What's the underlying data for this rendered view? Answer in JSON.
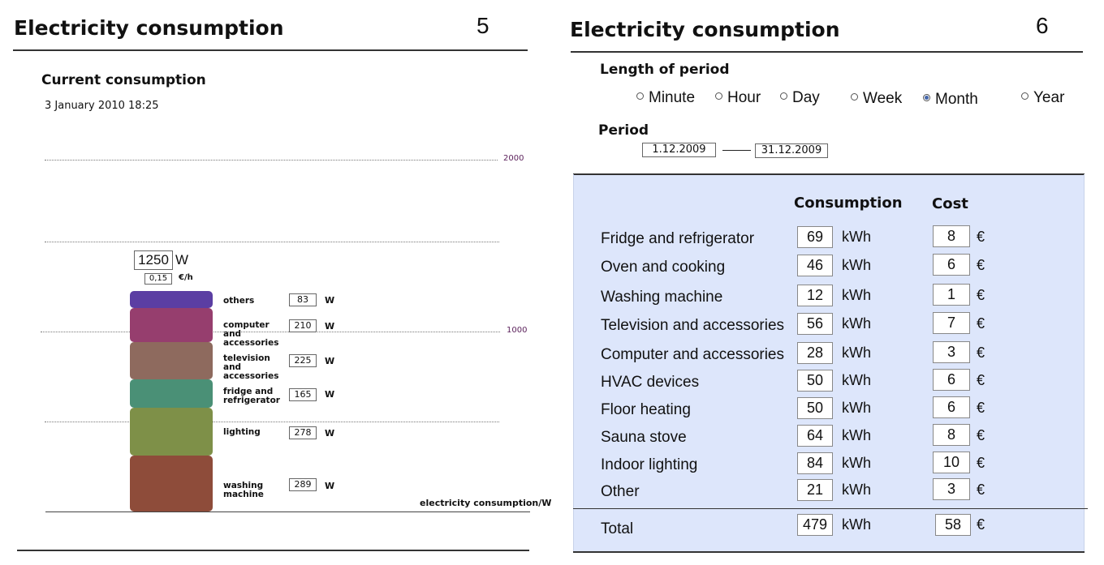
{
  "slide5": {
    "title": "Electricity consumption",
    "number": "5",
    "heading": "Current consumption",
    "timestamp": "3 January 2010 18:25",
    "axis_label_2000": "2000",
    "axis_label_1000": "1000",
    "power_value": "1250",
    "power_unit": "W",
    "cost_value": "0,15",
    "cost_unit": "€/h",
    "x_label": "electricity consumption/W",
    "segments": [
      {
        "label": "others",
        "value": "83",
        "unit": "W",
        "color": "#5b3ea3"
      },
      {
        "label": "computer and accessories",
        "value": "210",
        "unit": "W",
        "color": "#963e6e"
      },
      {
        "label": "television and accessories",
        "value": "225",
        "unit": "W",
        "color": "#8e6a5e"
      },
      {
        "label": "fridge and refrigerator",
        "value": "165",
        "unit": "W",
        "color": "#4a9076"
      },
      {
        "label": "lighting",
        "value": "278",
        "unit": "W",
        "color": "#7e9048"
      },
      {
        "label": "washing machine",
        "value": "289",
        "unit": "W",
        "color": "#8e4c3a"
      }
    ]
  },
  "slide6": {
    "title": "Electricity consumption",
    "number": "6",
    "length_heading": "Length of period",
    "options": [
      {
        "label": "Minute",
        "selected": false
      },
      {
        "label": "Hour",
        "selected": false
      },
      {
        "label": "Day",
        "selected": false
      },
      {
        "label": "Week",
        "selected": false
      },
      {
        "label": "Month",
        "selected": true
      },
      {
        "label": "Year",
        "selected": false
      }
    ],
    "period_heading": "Period",
    "period_start": "1.12.2009",
    "period_end": "31.12.2009",
    "col_consumption": "Consumption",
    "col_cost": "Cost",
    "consumption_unit": "kWh",
    "cost_unit": "€",
    "rows": [
      {
        "label": "Fridge and refrigerator",
        "consumption": "69",
        "cost": "8"
      },
      {
        "label": "Oven and cooking",
        "consumption": "46",
        "cost": "6"
      },
      {
        "label": "Washing machine",
        "consumption": "12",
        "cost": "1"
      },
      {
        "label": "Television and accessories",
        "consumption": "56",
        "cost": "7"
      },
      {
        "label": "Computer and accessories",
        "consumption": "28",
        "cost": "3"
      },
      {
        "label": "HVAC devices",
        "consumption": "50",
        "cost": "6"
      },
      {
        "label": "Floor heating",
        "consumption": "50",
        "cost": "6"
      },
      {
        "label": "Sauna stove",
        "consumption": "64",
        "cost": "8"
      },
      {
        "label": "Indoor lighting",
        "consumption": "84",
        "cost": "10"
      },
      {
        "label": "Other",
        "consumption": "21",
        "cost": "3"
      }
    ],
    "total_label": "Total",
    "total_consumption": "479",
    "total_cost": "58"
  }
}
